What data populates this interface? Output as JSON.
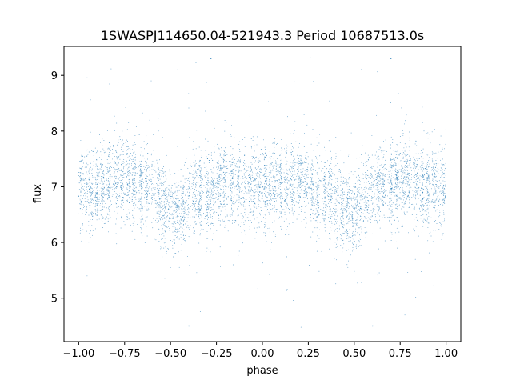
{
  "chart_data": {
    "type": "scatter",
    "title": "1SWASPJ114650.04-521943.3 Period 10687513.0s",
    "xlabel": "phase",
    "ylabel": "flux",
    "xlim": [
      -1.08,
      1.08
    ],
    "ylim": [
      4.22,
      9.52
    ],
    "xticks": [
      -1.0,
      -0.75,
      -0.5,
      -0.25,
      0.0,
      0.25,
      0.5,
      0.75,
      1.0
    ],
    "xtick_labels": [
      "−1.00",
      "−0.75",
      "−0.50",
      "−0.25",
      "0.00",
      "0.25",
      "0.50",
      "0.75",
      "1.00"
    ],
    "yticks": [
      5,
      6,
      7,
      8,
      9
    ],
    "ytick_labels": [
      "5",
      "6",
      "7",
      "8",
      "9"
    ],
    "grid": false,
    "marker_color": "#1f77b4",
    "series": [
      {
        "style": "dense point cloud, symmetric about phase 0 (two folded cycles); central band near flux 7.0 with spread about ±0.6, dips near phase ±0.5, spikes up to ~9.3 and down to ~4.5",
        "sample_points": [
          [
            -0.99,
            7.3
          ],
          [
            -0.95,
            6.6
          ],
          [
            -0.9,
            7.1
          ],
          [
            -0.85,
            7.4
          ],
          [
            -0.8,
            7.2
          ],
          [
            -0.75,
            7.0
          ],
          [
            -0.7,
            7.1
          ],
          [
            -0.65,
            6.8
          ],
          [
            -0.6,
            7.0
          ],
          [
            -0.55,
            6.6
          ],
          [
            -0.5,
            6.4
          ],
          [
            -0.45,
            6.5
          ],
          [
            -0.4,
            6.8
          ],
          [
            -0.35,
            7.0
          ],
          [
            -0.3,
            6.6
          ],
          [
            -0.25,
            6.8
          ],
          [
            -0.2,
            6.9
          ],
          [
            -0.15,
            7.0
          ],
          [
            -0.1,
            7.1
          ],
          [
            -0.05,
            7.0
          ],
          [
            0.0,
            7.0
          ],
          [
            0.05,
            7.1
          ],
          [
            0.1,
            7.0
          ],
          [
            0.15,
            7.2
          ],
          [
            0.2,
            7.3
          ],
          [
            0.25,
            7.1
          ],
          [
            0.3,
            7.0
          ],
          [
            0.35,
            6.9
          ],
          [
            0.4,
            6.9
          ],
          [
            0.45,
            6.6
          ],
          [
            0.5,
            6.5
          ],
          [
            0.55,
            6.6
          ],
          [
            0.6,
            6.9
          ],
          [
            0.65,
            7.0
          ],
          [
            0.7,
            6.8
          ],
          [
            0.75,
            6.9
          ],
          [
            0.8,
            7.1
          ],
          [
            0.85,
            7.0
          ],
          [
            0.9,
            7.2
          ],
          [
            0.95,
            7.1
          ],
          [
            0.99,
            7.0
          ],
          [
            -0.28,
            9.3
          ],
          [
            0.7,
            9.3
          ],
          [
            -0.46,
            9.1
          ],
          [
            0.54,
            9.1
          ],
          [
            -0.4,
            4.5
          ],
          [
            0.6,
            4.5
          ]
        ]
      }
    ]
  }
}
